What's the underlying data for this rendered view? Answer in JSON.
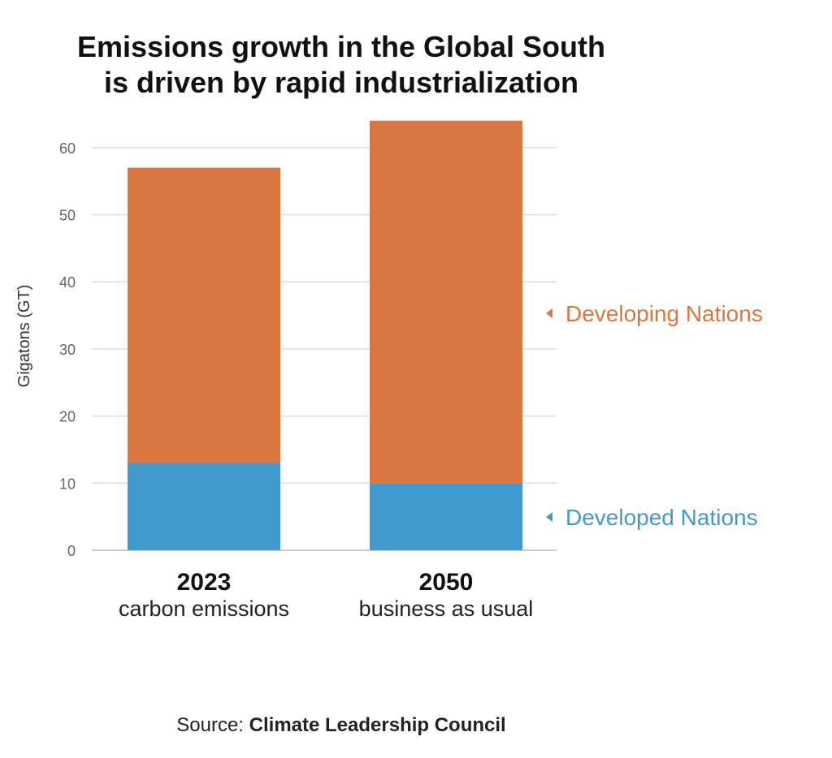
{
  "title_line1": "Emissions growth in the Global South",
  "title_line2": "is driven by rapid industrialization",
  "source_prefix": "Source:",
  "source_name": "Climate Leadership Council",
  "chart_data": {
    "type": "bar",
    "stacked": true,
    "categories": [
      "2023",
      "2050"
    ],
    "category_sublabels": [
      "carbon emissions",
      "business as usual"
    ],
    "series": [
      {
        "name": "Developed Nations",
        "values": [
          13,
          10
        ],
        "color": "#4199cf"
      },
      {
        "name": "Developing Nations",
        "values": [
          44,
          54
        ],
        "color": "#dc7641"
      }
    ],
    "ylabel": "Gigatons (GT)",
    "ylim": [
      0,
      65
    ],
    "yticks": [
      0,
      10,
      20,
      30,
      40,
      50,
      60
    ],
    "grid": true,
    "legend": "right, inline labels beside bars"
  }
}
